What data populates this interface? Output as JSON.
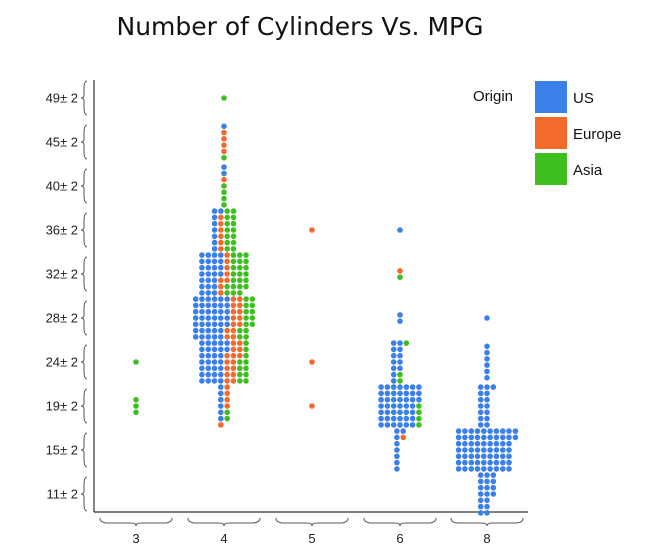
{
  "chart_data": {
    "type": "scatter",
    "subtype": "dot-grid",
    "title": "Number of Cylinders Vs. MPG",
    "xlabel": "",
    "ylabel": "",
    "x_categories": [
      "3",
      "4",
      "5",
      "6",
      "8"
    ],
    "y_categories": [
      "11± 2",
      "15± 2",
      "19± 2",
      "24± 2",
      "28± 2",
      "32± 2",
      "36± 2",
      "40± 2",
      "45± 2",
      "49± 2"
    ],
    "legend": {
      "title": "Origin",
      "position": "top-right",
      "entries": [
        {
          "name": "US",
          "color": "#3b7fe8"
        },
        {
          "name": "Europe",
          "color": "#f46a2b"
        },
        {
          "name": "Asia",
          "color": "#3fbf1f"
        }
      ]
    },
    "grid": false,
    "series": [
      {
        "name": "US",
        "color": "#3b7fe8",
        "counts": [
          [
            0,
            0,
            0,
            0,
            0,
            0,
            0,
            0,
            0,
            0
          ],
          [
            0,
            0,
            6,
            30,
            40,
            25,
            8,
            2,
            1,
            0
          ],
          [
            0,
            0,
            0,
            0,
            0,
            0,
            0,
            0,
            0,
            0
          ],
          [
            0,
            8,
            45,
            12,
            2,
            0,
            1,
            0,
            0,
            0
          ],
          [
            18,
            65,
            15,
            6,
            1,
            0,
            0,
            0,
            0,
            0
          ]
        ]
      },
      {
        "name": "Europe",
        "color": "#f46a2b",
        "counts": [
          [
            0,
            0,
            0,
            0,
            0,
            0,
            0,
            0,
            0,
            0
          ],
          [
            0,
            0,
            5,
            15,
            14,
            8,
            6,
            1,
            4,
            0
          ],
          [
            0,
            0,
            1,
            1,
            0,
            0,
            1,
            0,
            0,
            0
          ],
          [
            0,
            1,
            0,
            0,
            0,
            1,
            0,
            0,
            0,
            0
          ],
          [
            0,
            0,
            0,
            0,
            0,
            0,
            0,
            0,
            0,
            0
          ]
        ]
      },
      {
        "name": "Asia",
        "color": "#3fbf1f",
        "counts": [
          [
            0,
            0,
            3,
            1,
            0,
            0,
            0,
            0,
            0,
            0
          ],
          [
            0,
            0,
            2,
            11,
            14,
            22,
            14,
            4,
            1,
            1
          ],
          [
            0,
            0,
            0,
            0,
            0,
            0,
            0,
            0,
            0,
            0
          ],
          [
            0,
            0,
            4,
            3,
            0,
            1,
            0,
            0,
            0,
            0
          ],
          [
            0,
            0,
            0,
            0,
            0,
            0,
            0,
            0,
            0,
            0
          ]
        ]
      }
    ]
  }
}
